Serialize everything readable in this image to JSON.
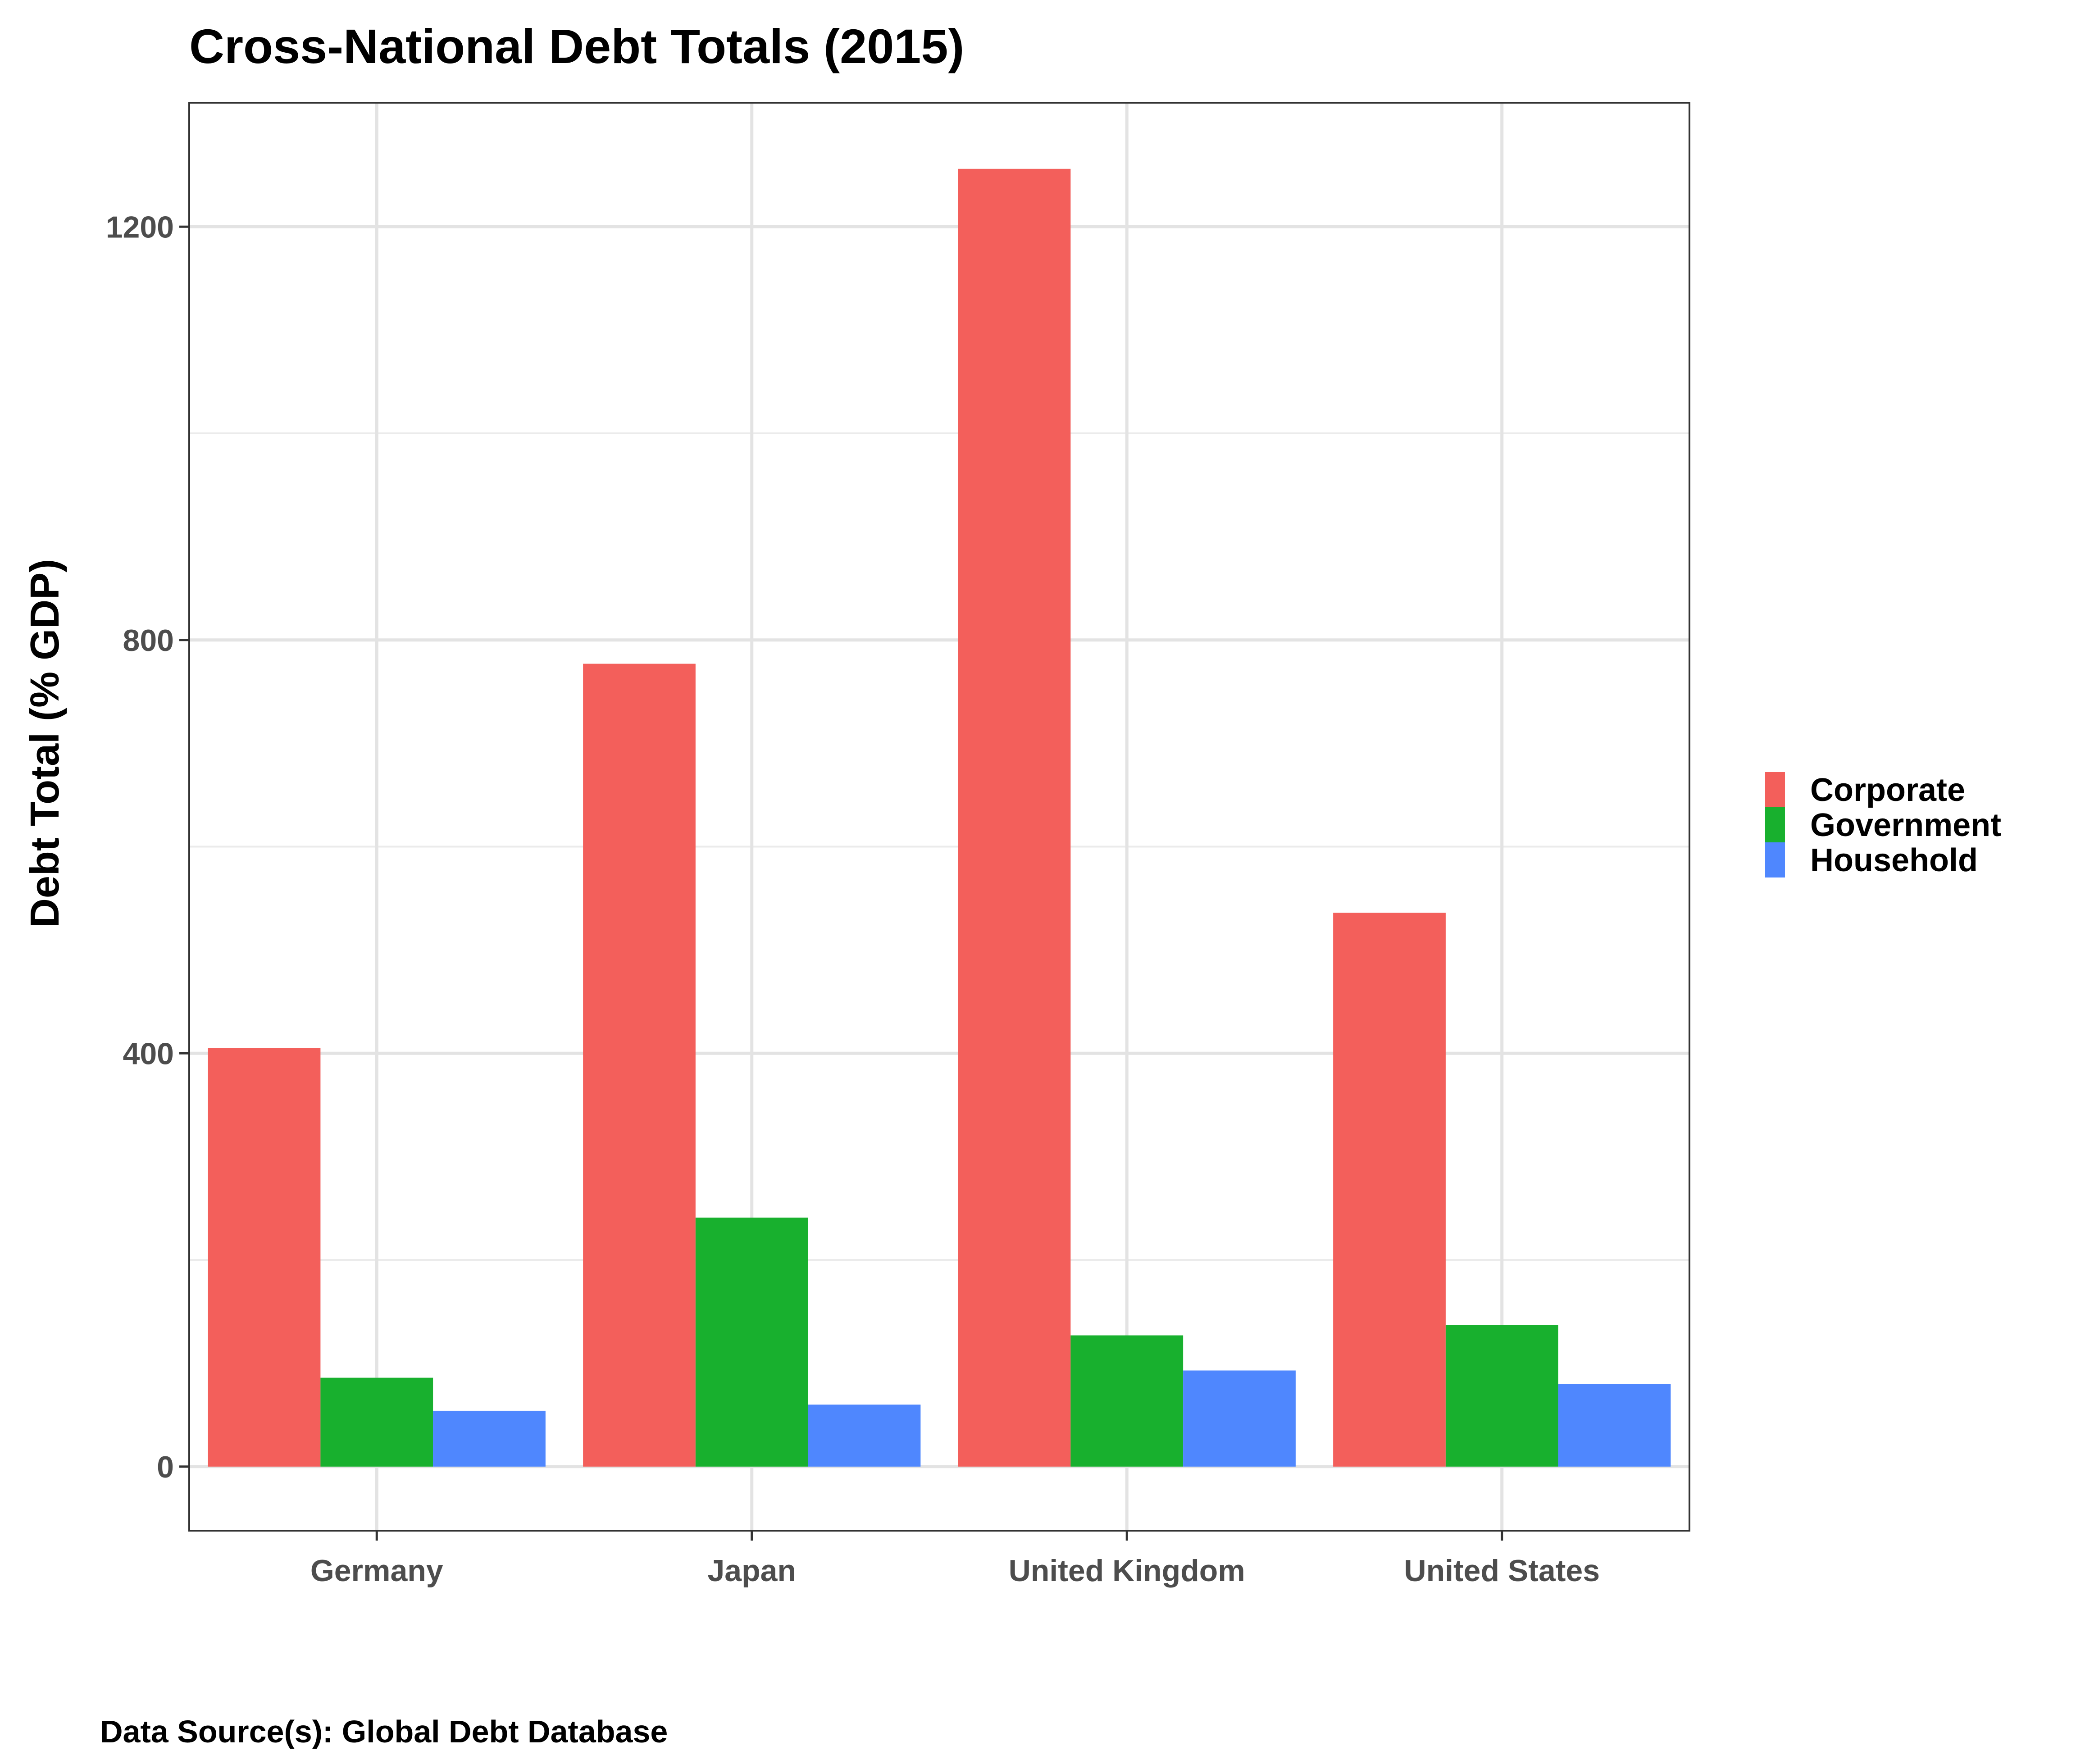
{
  "chart_data": {
    "type": "bar",
    "title": "Cross-National Debt Totals (2015)",
    "xlabel": "",
    "ylabel": "Debt Total (% GDP)",
    "caption": "Data Source(s): Global Debt Database",
    "categories": [
      "Germany",
      "Japan",
      "United Kingdom",
      "United States"
    ],
    "series": [
      {
        "name": "Corporate",
        "color": "#F35F5B",
        "values": [
          405,
          777,
          1256,
          536
        ]
      },
      {
        "name": "Government",
        "color": "#18B02E",
        "values": [
          86,
          241,
          127,
          137
        ]
      },
      {
        "name": "Household",
        "color": "#4F87FE",
        "values": [
          54,
          60,
          93,
          80
        ]
      }
    ],
    "ylim": [
      -62,
      1320
    ],
    "yticks": [
      0,
      400,
      800,
      1200
    ],
    "grid": true,
    "legend_position": "right"
  }
}
